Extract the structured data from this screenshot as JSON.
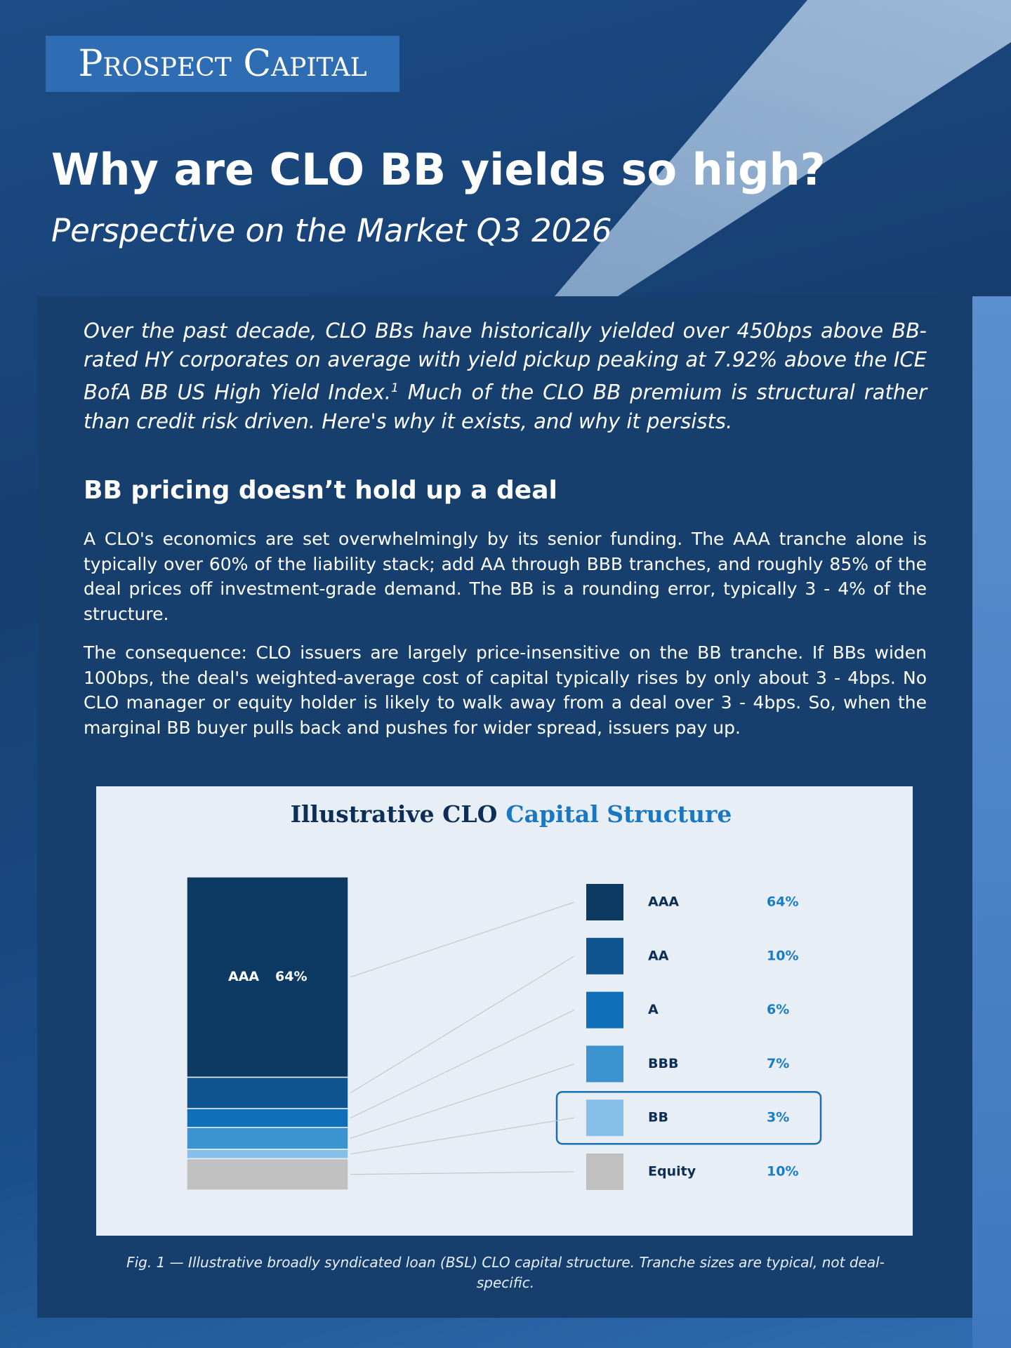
{
  "header": {
    "logo": "Prospect Capital",
    "title": "Why are CLO BB yields so high?",
    "subtitle": "Perspective on the Market Q3 2026"
  },
  "intro": {
    "before": "Over the past decade, CLO BBs have historically yielded over 450bps above BB-rated HY corporates on average with yield pickup peaking at 7.92% above the ICE BofA BB US High Yield Index.",
    "footnote": "1",
    "after": " Much of the CLO BB premium is structural rather than credit risk driven. Here's why it exists, and why it persists."
  },
  "section": {
    "heading": "BB pricing doesn’t hold up a deal",
    "paragraphs": [
      "A CLO's economics are set overwhelmingly by its senior funding. The AAA tranche alone is typically over 60% of the liability stack; add AA through BBB tranches, and roughly 85% of the deal prices off investment-grade demand. The BB is a rounding error, typically 3 - 4% of the structure.",
      "The consequence: CLO issuers are largely price-insensitive on the BB tranche. If BBs widen 100bps, the deal's weighted-average cost of capital typically rises by only about 3 - 4bps. No CLO manager or equity holder is likely to walk away from a deal over 3 - 4bps. So, when the marginal BB buyer pulls back and pushes for wider spread, issuers pay up."
    ]
  },
  "chart_data": {
    "type": "stacked-bar",
    "title": [
      "Illustrative CLO",
      "Capital Structure"
    ],
    "categories": [
      "AAA",
      "AA",
      "A",
      "BBB",
      "BB",
      "Equity"
    ],
    "values": [
      64,
      10,
      6,
      7,
      3,
      10
    ],
    "value_labels": [
      "64%",
      "10%",
      "6%",
      "7%",
      "3%",
      "10%"
    ],
    "colors": [
      "#0d3a63",
      "#0f5592",
      "#0f6fb8",
      "#3b93cf",
      "#86c0e8",
      "#c0c0c0"
    ],
    "highlight": "BB"
  },
  "caption": "Fig. 1 — Illustrative broadly syndicated loan (BSL) CLO capital structure. Tranche sizes are typical, not deal-specific."
}
